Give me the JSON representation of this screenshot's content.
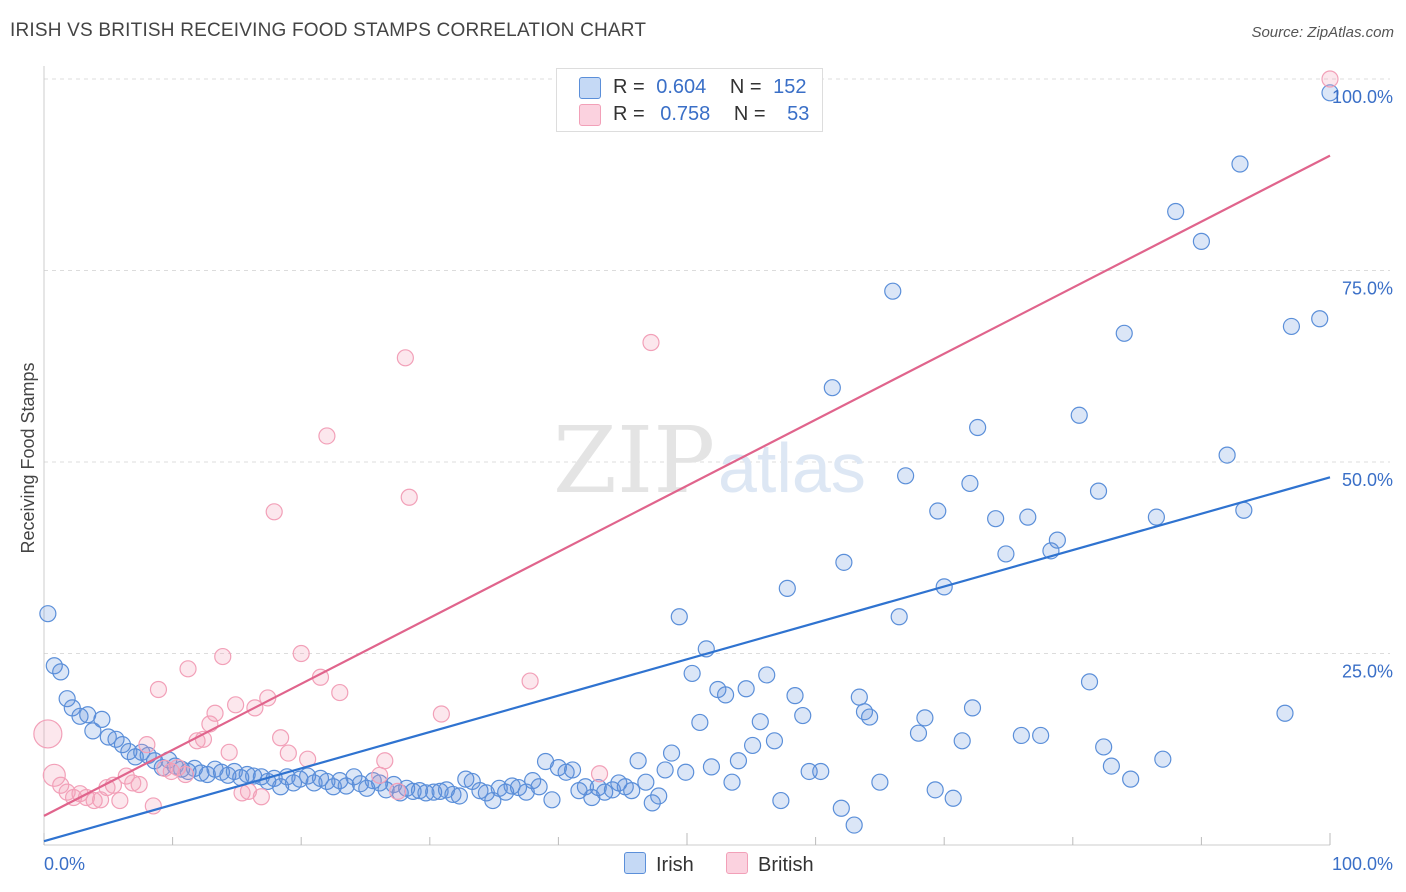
{
  "header": {
    "title": "IRISH VS BRITISH RECEIVING FOOD STAMPS CORRELATION CHART",
    "source": "Source: ZipAtlas.com"
  },
  "legend": {
    "r_label": "R =",
    "n_label": "N =",
    "irish": {
      "r": "0.604",
      "n": "152"
    },
    "british": {
      "r": "0.758",
      "n": "53"
    }
  },
  "bottom_legend": {
    "irish": "Irish",
    "british": "British"
  },
  "watermark": {
    "zip": "ZIP",
    "atlas": "atlas"
  },
  "chart_data": {
    "type": "scatter",
    "title": "IRISH VS BRITISH RECEIVING FOOD STAMPS CORRELATION CHART",
    "xlabel": "",
    "ylabel": "Receiving Food Stamps",
    "xlim": [
      0,
      100
    ],
    "ylim": [
      0,
      100
    ],
    "x_tick_labels": [
      "0.0%",
      "100.0%"
    ],
    "y_ticks": [
      25,
      50,
      75,
      100
    ],
    "y_tick_labels": [
      "25.0%",
      "50.0%",
      "75.0%",
      "100.0%"
    ],
    "colors": {
      "irish": "#5b8fd9",
      "irish_line": "#2f73d0",
      "british": "#f2a0b8",
      "british_line": "#e0648c",
      "axis_label": "#3a6fc7"
    },
    "series": [
      {
        "name": "Irish",
        "r": 0.604,
        "n": 152,
        "trend": {
          "x": [
            0,
            100
          ],
          "y": [
            0.5,
            48
          ]
        },
        "points": [
          [
            0.3,
            30.2
          ],
          [
            0.8,
            23.4
          ],
          [
            1.3,
            22.6
          ],
          [
            1.8,
            19.1
          ],
          [
            2.2,
            17.9
          ],
          [
            2.8,
            16.8
          ],
          [
            3.4,
            17.0
          ],
          [
            3.8,
            14.9
          ],
          [
            4.5,
            16.4
          ],
          [
            5.0,
            14.1
          ],
          [
            5.6,
            13.8
          ],
          [
            6.1,
            13.1
          ],
          [
            6.6,
            12.2
          ],
          [
            7.1,
            11.5
          ],
          [
            7.6,
            12.1
          ],
          [
            8.1,
            11.7
          ],
          [
            8.6,
            11.0
          ],
          [
            9.2,
            10.1
          ],
          [
            9.7,
            11.1
          ],
          [
            10.2,
            10.3
          ],
          [
            10.7,
            9.9
          ],
          [
            11.2,
            9.6
          ],
          [
            11.7,
            10.0
          ],
          [
            12.2,
            9.4
          ],
          [
            12.7,
            9.2
          ],
          [
            13.3,
            9.9
          ],
          [
            13.8,
            9.5
          ],
          [
            14.3,
            9.1
          ],
          [
            14.8,
            9.6
          ],
          [
            15.3,
            8.8
          ],
          [
            15.8,
            9.2
          ],
          [
            16.3,
            9.0
          ],
          [
            16.9,
            8.9
          ],
          [
            17.4,
            8.3
          ],
          [
            17.9,
            8.7
          ],
          [
            18.4,
            7.6
          ],
          [
            18.9,
            8.9
          ],
          [
            19.4,
            8.1
          ],
          [
            19.9,
            8.6
          ],
          [
            20.5,
            9.0
          ],
          [
            21.0,
            8.1
          ],
          [
            21.5,
            8.7
          ],
          [
            22.0,
            8.3
          ],
          [
            22.5,
            7.6
          ],
          [
            23.0,
            8.4
          ],
          [
            23.5,
            7.7
          ],
          [
            24.1,
            8.9
          ],
          [
            24.6,
            8.0
          ],
          [
            25.1,
            7.4
          ],
          [
            25.6,
            8.4
          ],
          [
            26.1,
            8.1
          ],
          [
            26.6,
            7.2
          ],
          [
            27.2,
            7.9
          ],
          [
            27.7,
            6.8
          ],
          [
            28.2,
            7.4
          ],
          [
            28.7,
            7.0
          ],
          [
            29.2,
            7.1
          ],
          [
            29.7,
            6.8
          ],
          [
            30.3,
            6.9
          ],
          [
            30.8,
            7.0
          ],
          [
            31.3,
            7.2
          ],
          [
            31.8,
            6.6
          ],
          [
            32.3,
            6.4
          ],
          [
            32.8,
            8.6
          ],
          [
            33.3,
            8.3
          ],
          [
            33.9,
            7.1
          ],
          [
            34.4,
            6.8
          ],
          [
            34.9,
            5.8
          ],
          [
            35.4,
            7.4
          ],
          [
            35.9,
            6.9
          ],
          [
            36.4,
            7.7
          ],
          [
            36.9,
            7.5
          ],
          [
            37.5,
            6.9
          ],
          [
            38.0,
            8.4
          ],
          [
            38.5,
            7.6
          ],
          [
            39.0,
            10.9
          ],
          [
            39.5,
            5.9
          ],
          [
            40.0,
            10.1
          ],
          [
            40.6,
            9.5
          ],
          [
            41.1,
            9.8
          ],
          [
            41.6,
            7.1
          ],
          [
            42.1,
            7.6
          ],
          [
            42.6,
            6.2
          ],
          [
            43.1,
            7.5
          ],
          [
            43.6,
            6.9
          ],
          [
            44.2,
            7.2
          ],
          [
            44.7,
            8.1
          ],
          [
            45.2,
            7.6
          ],
          [
            45.7,
            7.1
          ],
          [
            46.2,
            11.0
          ],
          [
            46.8,
            8.2
          ],
          [
            47.3,
            5.5
          ],
          [
            47.8,
            6.4
          ],
          [
            48.3,
            9.8
          ],
          [
            48.8,
            12.0
          ],
          [
            49.4,
            29.8
          ],
          [
            49.9,
            9.5
          ],
          [
            50.4,
            22.4
          ],
          [
            51.0,
            16.0
          ],
          [
            51.5,
            25.6
          ],
          [
            51.9,
            10.2
          ],
          [
            52.4,
            20.3
          ],
          [
            53.0,
            19.6
          ],
          [
            53.5,
            8.2
          ],
          [
            54.0,
            11.0
          ],
          [
            54.6,
            20.4
          ],
          [
            55.1,
            13.0
          ],
          [
            55.7,
            16.1
          ],
          [
            56.2,
            22.2
          ],
          [
            56.8,
            13.6
          ],
          [
            57.3,
            5.8
          ],
          [
            57.8,
            33.5
          ],
          [
            58.4,
            19.5
          ],
          [
            59.0,
            16.9
          ],
          [
            59.5,
            9.6
          ],
          [
            60.4,
            9.6
          ],
          [
            61.3,
            59.7
          ],
          [
            62.0,
            4.8
          ],
          [
            62.2,
            36.9
          ],
          [
            63.0,
            2.6
          ],
          [
            63.4,
            19.3
          ],
          [
            63.8,
            17.4
          ],
          [
            64.2,
            16.7
          ],
          [
            65.0,
            8.2
          ],
          [
            66.0,
            72.3
          ],
          [
            66.5,
            29.8
          ],
          [
            67.0,
            48.2
          ],
          [
            68.0,
            14.6
          ],
          [
            68.5,
            16.6
          ],
          [
            69.3,
            7.2
          ],
          [
            69.5,
            43.6
          ],
          [
            70.0,
            33.7
          ],
          [
            70.7,
            6.1
          ],
          [
            71.4,
            13.6
          ],
          [
            72.0,
            47.2
          ],
          [
            72.2,
            17.9
          ],
          [
            72.6,
            54.5
          ],
          [
            74.0,
            42.6
          ],
          [
            74.8,
            38.0
          ],
          [
            76.0,
            14.3
          ],
          [
            76.5,
            42.8
          ],
          [
            77.5,
            14.3
          ],
          [
            78.3,
            38.4
          ],
          [
            78.8,
            39.8
          ],
          [
            80.5,
            56.1
          ],
          [
            81.3,
            21.3
          ],
          [
            82.0,
            46.2
          ],
          [
            82.4,
            12.8
          ],
          [
            83.0,
            10.3
          ],
          [
            84.0,
            66.8
          ],
          [
            84.5,
            8.6
          ],
          [
            86.5,
            42.8
          ],
          [
            87.0,
            11.2
          ],
          [
            88.0,
            82.7
          ],
          [
            90.0,
            78.8
          ],
          [
            92.0,
            50.9
          ],
          [
            93.0,
            88.9
          ],
          [
            93.3,
            43.7
          ],
          [
            96.5,
            17.2
          ],
          [
            100.0,
            98.2
          ],
          [
            99.2,
            68.7
          ],
          [
            97.0,
            67.7
          ]
        ]
      },
      {
        "name": "British",
        "r": 0.758,
        "n": 53,
        "trend": {
          "x": [
            0,
            100
          ],
          "y": [
            3.8,
            90.0
          ]
        },
        "points": [
          [
            0.3,
            14.5
          ],
          [
            0.8,
            9.1
          ],
          [
            1.3,
            7.8
          ],
          [
            1.8,
            6.9
          ],
          [
            2.3,
            6.2
          ],
          [
            2.8,
            6.7
          ],
          [
            3.3,
            6.2
          ],
          [
            3.9,
            5.8
          ],
          [
            4.4,
            5.9
          ],
          [
            4.9,
            7.5
          ],
          [
            5.4,
            7.8
          ],
          [
            5.9,
            5.8
          ],
          [
            6.4,
            9.0
          ],
          [
            6.9,
            8.1
          ],
          [
            7.4,
            7.9
          ],
          [
            8.0,
            13.1
          ],
          [
            8.5,
            5.1
          ],
          [
            8.9,
            20.3
          ],
          [
            9.4,
            10.0
          ],
          [
            9.9,
            9.6
          ],
          [
            10.4,
            10.1
          ],
          [
            11.0,
            9.2
          ],
          [
            11.2,
            23.0
          ],
          [
            11.9,
            13.6
          ],
          [
            12.4,
            13.8
          ],
          [
            12.9,
            15.8
          ],
          [
            13.3,
            17.2
          ],
          [
            13.9,
            24.6
          ],
          [
            14.4,
            12.1
          ],
          [
            14.9,
            18.3
          ],
          [
            15.4,
            6.8
          ],
          [
            15.9,
            7.0
          ],
          [
            16.4,
            17.9
          ],
          [
            16.9,
            6.3
          ],
          [
            17.4,
            19.2
          ],
          [
            17.9,
            43.5
          ],
          [
            18.4,
            14.0
          ],
          [
            19.0,
            12.0
          ],
          [
            20.0,
            25.0
          ],
          [
            20.5,
            11.2
          ],
          [
            21.5,
            21.9
          ],
          [
            22.0,
            53.4
          ],
          [
            23.0,
            19.9
          ],
          [
            26.1,
            9.1
          ],
          [
            26.5,
            11.0
          ],
          [
            28.1,
            63.6
          ],
          [
            28.4,
            45.4
          ],
          [
            30.9,
            17.1
          ],
          [
            37.8,
            21.4
          ],
          [
            43.2,
            9.3
          ],
          [
            47.2,
            65.6
          ],
          [
            100.0,
            100.0
          ],
          [
            27.5,
            7.0
          ]
        ]
      }
    ]
  }
}
